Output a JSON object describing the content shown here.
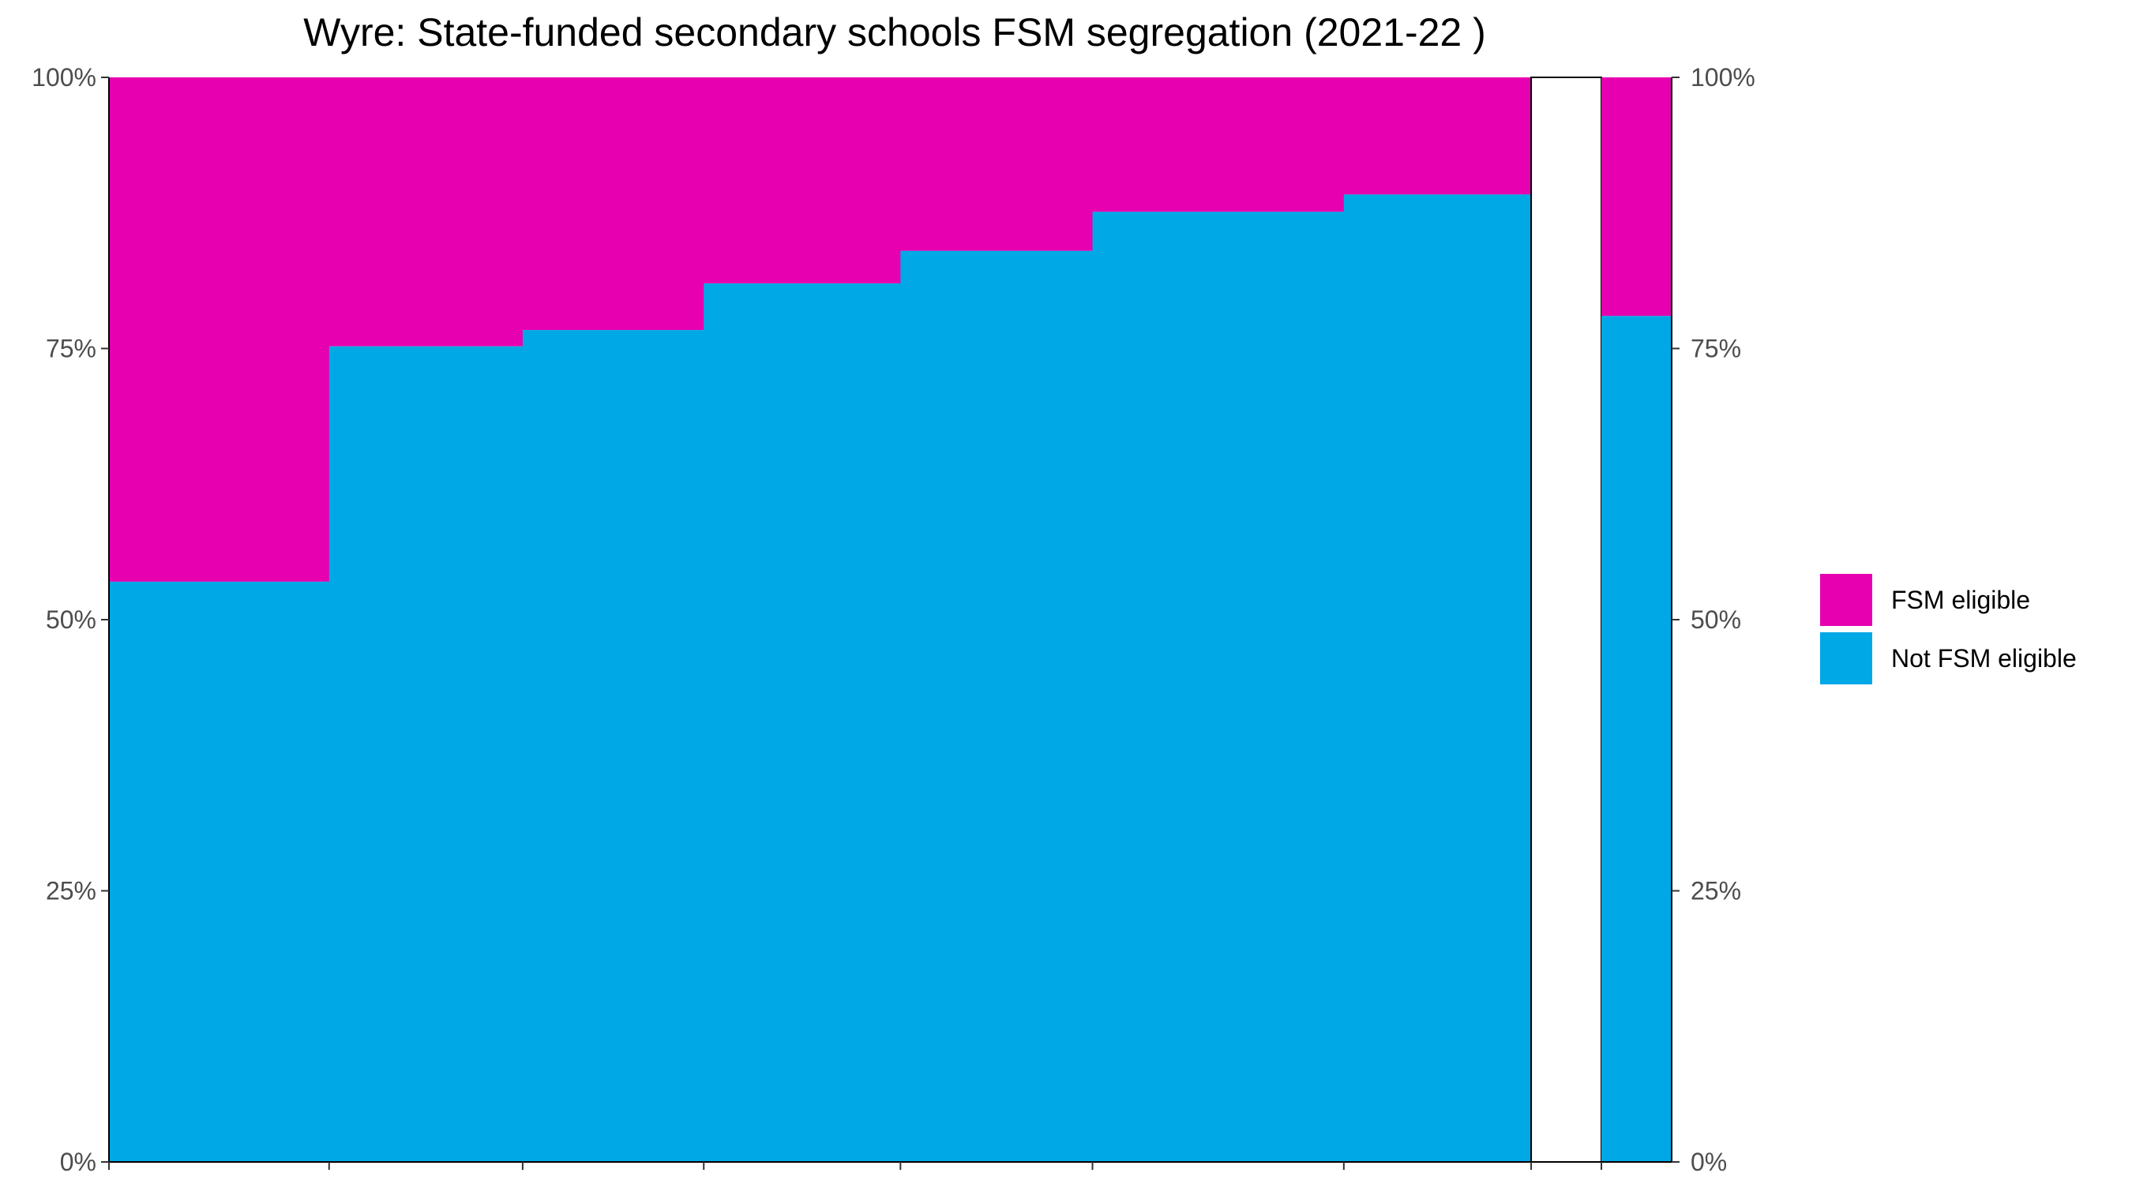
{
  "chart_data": {
    "type": "bar",
    "subtype": "marimekko",
    "title": "Wyre: State-funded secondary schools FSM segregation (2021-22 )",
    "xlabel": "",
    "ylabel": "",
    "ylim": [
      0,
      1
    ],
    "y_ticks": [
      "0%",
      "25%",
      "50%",
      "75%",
      "100%"
    ],
    "y_tick_values": [
      0,
      0.25,
      0.5,
      0.75,
      1.0
    ],
    "grid": false,
    "legend_position": "right",
    "series": [
      {
        "name": "FSM eligible",
        "color": "#E600B0"
      },
      {
        "name": "Not FSM eligible",
        "color": "#00A8E6"
      }
    ],
    "schools": [
      {
        "relative_width": 0.141,
        "not_fsm_share": 0.535
      },
      {
        "relative_width": 0.124,
        "not_fsm_share": 0.752
      },
      {
        "relative_width": 0.116,
        "not_fsm_share": 0.767
      },
      {
        "relative_width": 0.126,
        "not_fsm_share": 0.81
      },
      {
        "relative_width": 0.123,
        "not_fsm_share": 0.84
      },
      {
        "relative_width": 0.161,
        "not_fsm_share": 0.876
      },
      {
        "relative_width": 0.12,
        "not_fsm_share": 0.892
      }
    ],
    "gap_relative_width": 0.045,
    "overall": {
      "relative_width": 0.045,
      "not_fsm_share": 0.78
    }
  }
}
